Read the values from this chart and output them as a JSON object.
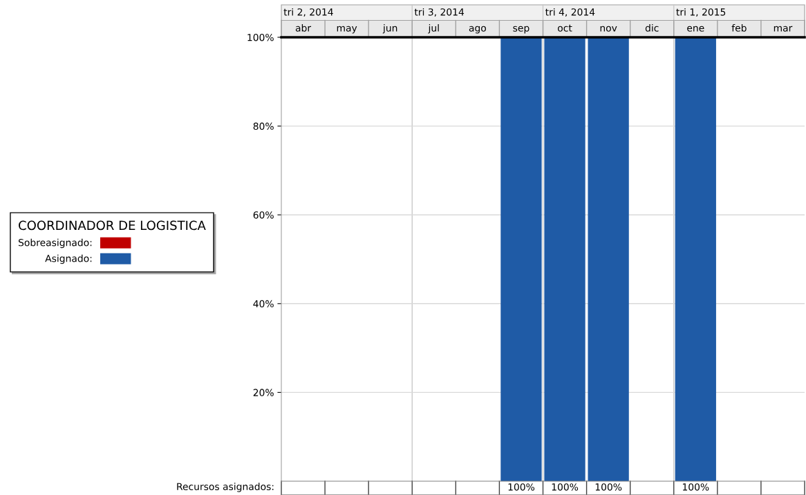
{
  "chart_data": {
    "type": "bar",
    "categories": [
      "abr",
      "may",
      "jun",
      "jul",
      "ago",
      "sep",
      "oct",
      "nov",
      "dic",
      "ene",
      "feb",
      "mar"
    ],
    "series": [
      {
        "name": "Sobreasignado:",
        "color": "#c00000",
        "values": [
          null,
          null,
          null,
          null,
          null,
          null,
          null,
          null,
          null,
          null,
          null,
          null
        ]
      },
      {
        "name": "Asignado:",
        "color": "#1f5ba6",
        "values": [
          null,
          null,
          null,
          null,
          null,
          100,
          100,
          100,
          null,
          100,
          null,
          null
        ],
        "value_labels": [
          null,
          null,
          null,
          null,
          null,
          "100%",
          "100%",
          "100%",
          null,
          "100%",
          null,
          null
        ]
      }
    ],
    "legend_title": "COORDINADOR DE LOGISTICA",
    "legend": "left",
    "ylim": [
      0,
      100
    ],
    "yticks": [
      {
        "value": 20,
        "label": "20%"
      },
      {
        "value": 40,
        "label": "40%"
      },
      {
        "value": 60,
        "label": "60%"
      },
      {
        "value": 80,
        "label": "80%"
      },
      {
        "value": 100,
        "label": "100%"
      }
    ],
    "grid": "y",
    "annotations": [
      "tri 2, 2014",
      "tri 3, 2014",
      "tri 4, 2014",
      "tri 1, 2015",
      "Recursos asignados:"
    ]
  }
}
